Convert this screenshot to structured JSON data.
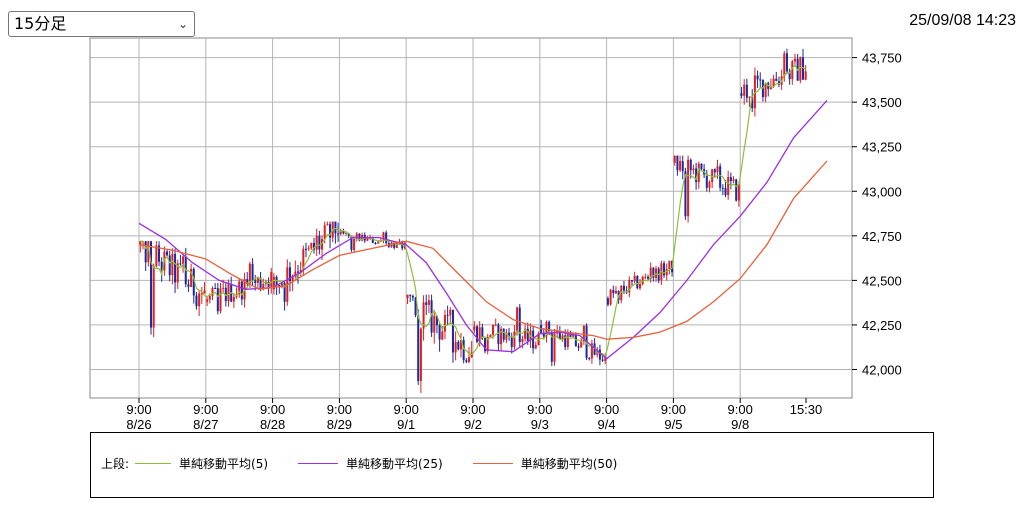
{
  "header": {
    "period_select": "15分足",
    "timestamp": "25/09/08 14:23"
  },
  "legend": {
    "prefix": "上段:",
    "items": [
      {
        "label": "単純移動平均(5)",
        "color": "#8fbf3a"
      },
      {
        "label": "単純移動平均(25)",
        "color": "#9b30e0"
      },
      {
        "label": "単純移動平均(50)",
        "color": "#e8603c"
      }
    ]
  },
  "chart_data": {
    "type": "candlestick",
    "ylim": [
      41840,
      43860
    ],
    "y_ticks": [
      {
        "value": 42000,
        "label": "42,000"
      },
      {
        "value": 42250,
        "label": "42,250"
      },
      {
        "value": 42500,
        "label": "42,500"
      },
      {
        "value": 42750,
        "label": "42,750"
      },
      {
        "value": 43000,
        "label": "43,000"
      },
      {
        "value": 43250,
        "label": "43,250"
      },
      {
        "value": 43500,
        "label": "43,500"
      },
      {
        "value": 43750,
        "label": "43,750"
      }
    ],
    "x_ticks": [
      {
        "time": "9:00",
        "date": "8/26"
      },
      {
        "time": "9:00",
        "date": "8/27"
      },
      {
        "time": "9:00",
        "date": "8/28"
      },
      {
        "time": "9:00",
        "date": "8/29"
      },
      {
        "time": "9:00",
        "date": "9/1"
      },
      {
        "time": "9:00",
        "date": "9/2"
      },
      {
        "time": "9:00",
        "date": "9/3"
      },
      {
        "time": "9:00",
        "date": "9/4"
      },
      {
        "time": "9:00",
        "date": "9/5"
      },
      {
        "time": "9:00",
        "date": "9/8"
      },
      {
        "time": "15:30",
        "date": ""
      }
    ],
    "days": [
      {
        "date": "8/26",
        "open": 42700,
        "close": 42420,
        "high": 42720,
        "low": 42150
      },
      {
        "date": "8/27",
        "open": 42380,
        "close": 42520,
        "high": 42650,
        "low": 42270
      },
      {
        "date": "8/28",
        "open": 42450,
        "close": 42800,
        "high": 42830,
        "low": 42300
      },
      {
        "date": "8/29",
        "open": 42760,
        "close": 42690,
        "high": 42790,
        "low": 42650
      },
      {
        "date": "9/1",
        "open": 42400,
        "close": 42100,
        "high": 42420,
        "low": 41850
      },
      {
        "date": "9/2",
        "open": 42220,
        "close": 42160,
        "high": 42400,
        "low": 42050
      },
      {
        "date": "9/3",
        "open": 42250,
        "close": 42060,
        "high": 42290,
        "low": 42000
      },
      {
        "date": "9/4",
        "open": 42400,
        "close": 42580,
        "high": 42610,
        "low": 42350
      },
      {
        "date": "9/5",
        "open": 43160,
        "close": 43000,
        "high": 43200,
        "low": 42800
      },
      {
        "date": "9/8",
        "open": 43550,
        "close": 43700,
        "high": 43840,
        "low": 43400
      }
    ],
    "series": [
      {
        "name": "単純移動平均(5)",
        "color": "#8fbf3a"
      },
      {
        "name": "単純移動平均(25)",
        "color": "#9b30e0",
        "values": [
          [
            0,
            42820
          ],
          [
            0.4,
            42730
          ],
          [
            0.8,
            42600
          ],
          [
            1.2,
            42500
          ],
          [
            1.6,
            42450
          ],
          [
            2.0,
            42460
          ],
          [
            2.4,
            42540
          ],
          [
            2.8,
            42650
          ],
          [
            3.2,
            42740
          ],
          [
            3.6,
            42740
          ],
          [
            4.0,
            42700
          ],
          [
            4.3,
            42600
          ],
          [
            4.6,
            42430
          ],
          [
            4.9,
            42250
          ],
          [
            5.2,
            42110
          ],
          [
            5.6,
            42100
          ],
          [
            6.0,
            42200
          ],
          [
            6.3,
            42210
          ],
          [
            6.6,
            42190
          ],
          [
            7.0,
            42060
          ],
          [
            7.4,
            42180
          ],
          [
            7.8,
            42320
          ],
          [
            8.2,
            42500
          ],
          [
            8.6,
            42700
          ],
          [
            9.0,
            42860
          ],
          [
            9.4,
            43050
          ],
          [
            9.8,
            43300
          ],
          [
            10.3,
            43510
          ]
        ]
      },
      {
        "name": "単純移動平均(50)",
        "color": "#e8603c",
        "values": [
          [
            0,
            42700
          ],
          [
            0.5,
            42670
          ],
          [
            1.0,
            42620
          ],
          [
            1.4,
            42530
          ],
          [
            1.8,
            42450
          ],
          [
            2.2,
            42470
          ],
          [
            2.6,
            42560
          ],
          [
            3.0,
            42640
          ],
          [
            3.5,
            42680
          ],
          [
            4.0,
            42720
          ],
          [
            4.4,
            42680
          ],
          [
            4.8,
            42530
          ],
          [
            5.2,
            42380
          ],
          [
            5.6,
            42280
          ],
          [
            6.0,
            42230
          ],
          [
            6.4,
            42210
          ],
          [
            6.8,
            42190
          ],
          [
            7.0,
            42170
          ],
          [
            7.4,
            42180
          ],
          [
            7.8,
            42210
          ],
          [
            8.2,
            42270
          ],
          [
            8.6,
            42380
          ],
          [
            9.0,
            42510
          ],
          [
            9.4,
            42700
          ],
          [
            9.8,
            42960
          ],
          [
            10.3,
            43170
          ]
        ]
      }
    ]
  }
}
